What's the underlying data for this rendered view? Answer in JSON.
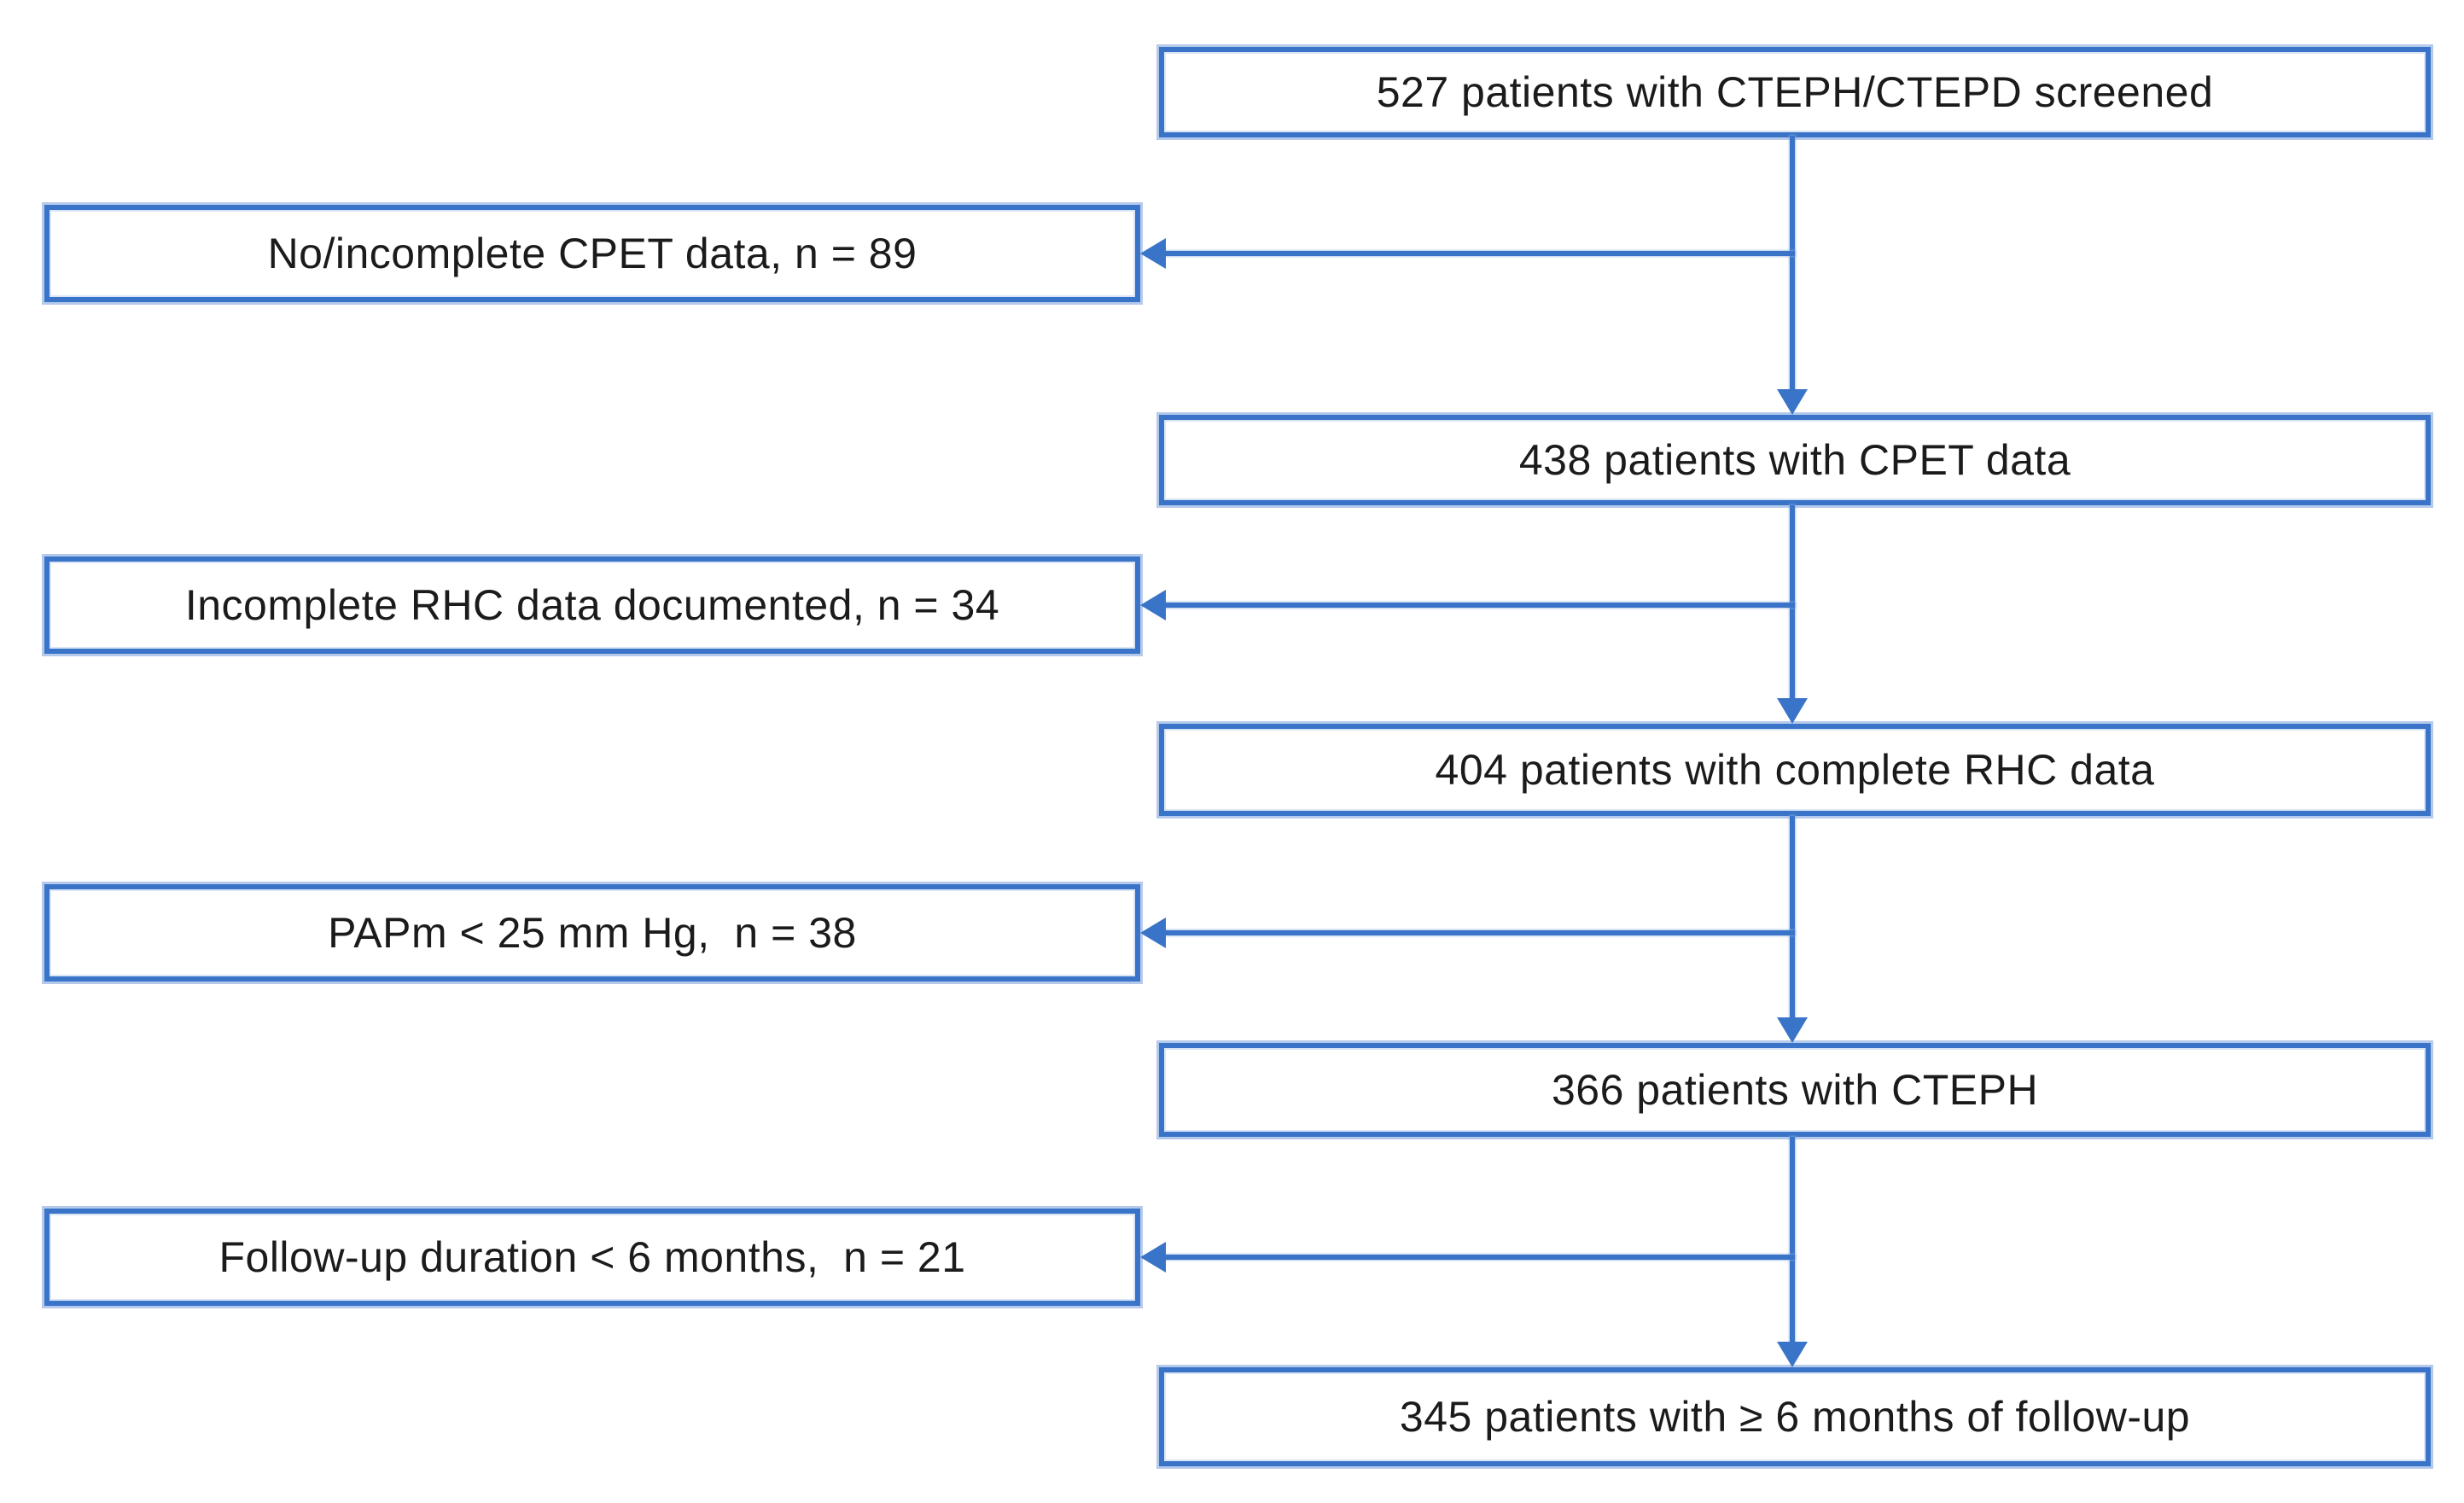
{
  "flowchart": {
    "main_boxes": [
      {
        "label": "527 patients with CTEPH/CTEPD screened"
      },
      {
        "label": "438 patients with CPET data"
      },
      {
        "label": "404 patients with complete RHC data"
      },
      {
        "label": "366 patients with CTEPH"
      },
      {
        "label": "345 patients with ≥ 6 months of follow-up"
      }
    ],
    "exclusion_boxes": [
      {
        "label": "No/incomplete CPET data, n = 89"
      },
      {
        "label": "Incomplete RHC data documented, n = 34"
      },
      {
        "label": "PAPm < 25 mm Hg,  n = 38"
      },
      {
        "label": "Follow-up duration < 6 months,  n = 21"
      }
    ],
    "colors": {
      "line": "#3a74c8",
      "halo": "#8daee0",
      "text": "#1b1b1b",
      "background": "#ffffff"
    }
  }
}
